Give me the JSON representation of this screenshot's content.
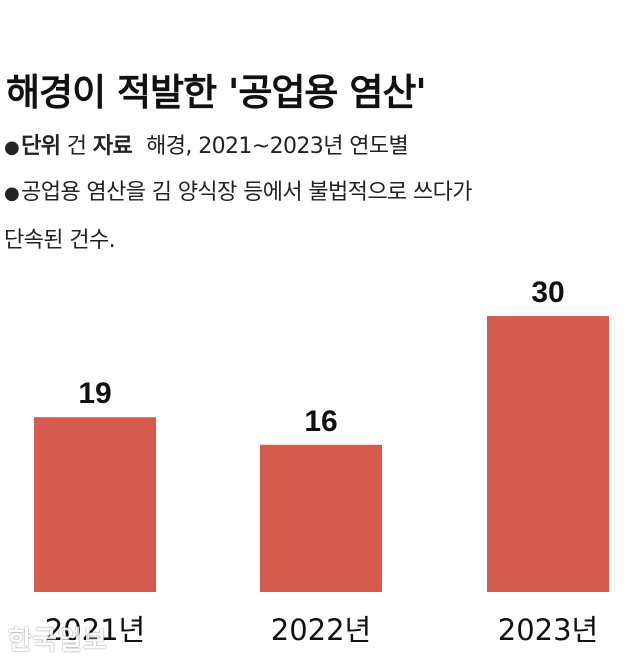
{
  "title": "해경이 적발한 '공업용 염산'",
  "unit_note": {
    "unit_label": "단위",
    "unit_value": "건",
    "source_label": "자료",
    "source_value": "해경, 2021~2023년 연도별"
  },
  "description": {
    "line1": "공업용 염산을 김 양식장 등에서 불법적으로 쓰다가",
    "line2": "단속된 건수."
  },
  "watermark": "한국일보",
  "colors": {
    "bar": "#d45c4f",
    "text": "#111111"
  },
  "chart_data": {
    "type": "bar",
    "categories": [
      "2021년",
      "2022년",
      "2023년"
    ],
    "values": [
      19,
      16,
      30
    ],
    "title": "해경이 적발한 '공업용 염산'",
    "xlabel": "",
    "ylabel": "",
    "ylim": [
      0,
      30
    ],
    "grid": false,
    "legend": "none"
  }
}
